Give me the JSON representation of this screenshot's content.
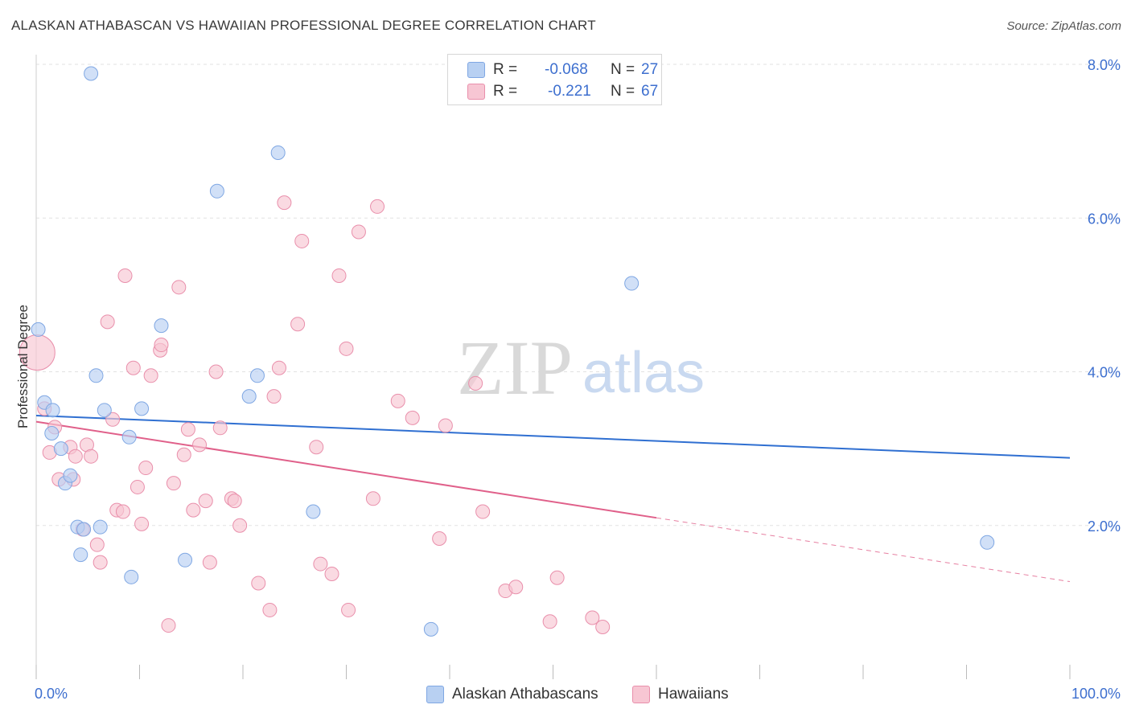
{
  "header": {
    "title": "ALASKAN ATHABASCAN VS HAWAIIAN PROFESSIONAL DEGREE CORRELATION CHART",
    "source": "Source: ZipAtlas.com"
  },
  "legend": {
    "rows": [
      {
        "r_label": "R =",
        "r_value": "-0.068",
        "n_label": "N =",
        "n_value": "27"
      },
      {
        "r_label": "R =",
        "r_value": "-0.221",
        "n_label": "N =",
        "n_value": "67"
      }
    ],
    "bottom": [
      "Alaskan Athabascans",
      "Hawaiians"
    ]
  },
  "watermark": {
    "zip": "ZIP",
    "atlas": "atlas"
  },
  "colors": {
    "blue_fill": "#b8d0f2",
    "blue_stroke": "#7fa7e3",
    "blue_line": "#2f6fd1",
    "pink_fill": "#f7c6d3",
    "pink_stroke": "#e98fab",
    "pink_line": "#e0608a",
    "axis_text": "#3d6fcf",
    "grid": "#e2e2e2"
  },
  "chart_data": {
    "type": "scatter",
    "title": "ALASKAN ATHABASCAN VS HAWAIIAN PROFESSIONAL DEGREE CORRELATION CHART",
    "xlabel": "",
    "ylabel": "Professional Degree",
    "xlim": [
      0,
      100
    ],
    "ylim": [
      0,
      8.3
    ],
    "x_tick_labels": [
      "0.0%",
      "100.0%"
    ],
    "y_ticks": [
      2,
      4,
      6,
      8
    ],
    "y_tick_labels": [
      "2.0%",
      "4.0%",
      "6.0%",
      "8.0%"
    ],
    "grid": true,
    "legend_position": "top-center",
    "series": [
      {
        "name": "Alaskan Athabascans",
        "color": "#b8d0f2",
        "points": [
          [
            0.2,
            4.55
          ],
          [
            0.8,
            3.6
          ],
          [
            1.6,
            3.5
          ],
          [
            1.5,
            3.2
          ],
          [
            2.4,
            3.0
          ],
          [
            2.8,
            2.55
          ],
          [
            3.3,
            2.65
          ],
          [
            4.0,
            1.98
          ],
          [
            4.3,
            1.62
          ],
          [
            4.6,
            1.95
          ],
          [
            5.3,
            7.88
          ],
          [
            5.8,
            3.95
          ],
          [
            6.2,
            1.98
          ],
          [
            6.6,
            3.5
          ],
          [
            9.0,
            3.15
          ],
          [
            9.2,
            1.33
          ],
          [
            10.2,
            3.52
          ],
          [
            12.1,
            4.6
          ],
          [
            14.4,
            1.55
          ],
          [
            17.5,
            6.35
          ],
          [
            20.6,
            3.68
          ],
          [
            21.4,
            3.95
          ],
          [
            23.4,
            6.85
          ],
          [
            26.8,
            2.18
          ],
          [
            38.2,
            0.65
          ],
          [
            57.6,
            5.15
          ],
          [
            92.0,
            1.78
          ]
        ],
        "trend": {
          "x": [
            0,
            100
          ],
          "y": [
            3.43,
            2.88
          ]
        }
      },
      {
        "name": "Hawaiians",
        "color": "#f7c6d3",
        "points": [
          [
            0.1,
            4.25
          ],
          [
            0.8,
            3.52
          ],
          [
            1.3,
            2.95
          ],
          [
            1.8,
            3.28
          ],
          [
            2.2,
            2.6
          ],
          [
            3.3,
            3.02
          ],
          [
            3.8,
            2.9
          ],
          [
            3.6,
            2.6
          ],
          [
            4.5,
            1.95
          ],
          [
            4.9,
            3.05
          ],
          [
            5.3,
            2.9
          ],
          [
            5.9,
            1.75
          ],
          [
            6.2,
            1.52
          ],
          [
            6.9,
            4.65
          ],
          [
            7.4,
            3.38
          ],
          [
            7.8,
            2.2
          ],
          [
            8.4,
            2.18
          ],
          [
            8.6,
            5.25
          ],
          [
            9.4,
            4.05
          ],
          [
            9.8,
            2.5
          ],
          [
            10.2,
            2.02
          ],
          [
            10.6,
            2.75
          ],
          [
            11.1,
            3.95
          ],
          [
            12.0,
            4.28
          ],
          [
            12.1,
            4.35
          ],
          [
            12.8,
            0.7
          ],
          [
            13.3,
            2.55
          ],
          [
            13.8,
            5.1
          ],
          [
            14.3,
            2.92
          ],
          [
            14.7,
            3.25
          ],
          [
            15.2,
            2.2
          ],
          [
            15.8,
            3.05
          ],
          [
            16.4,
            2.32
          ],
          [
            16.8,
            1.52
          ],
          [
            17.4,
            4.0
          ],
          [
            17.8,
            3.27
          ],
          [
            18.9,
            2.35
          ],
          [
            19.2,
            2.32
          ],
          [
            19.7,
            2.0
          ],
          [
            21.5,
            1.25
          ],
          [
            22.6,
            0.9
          ],
          [
            23.0,
            3.68
          ],
          [
            23.5,
            4.05
          ],
          [
            24.0,
            6.2
          ],
          [
            25.3,
            4.62
          ],
          [
            25.7,
            5.7
          ],
          [
            27.1,
            3.02
          ],
          [
            27.5,
            1.5
          ],
          [
            28.6,
            1.37
          ],
          [
            29.3,
            5.25
          ],
          [
            30.0,
            4.3
          ],
          [
            30.2,
            0.9
          ],
          [
            31.2,
            5.82
          ],
          [
            32.6,
            2.35
          ],
          [
            33.0,
            6.15
          ],
          [
            35.0,
            3.62
          ],
          [
            36.4,
            3.4
          ],
          [
            39.0,
            1.83
          ],
          [
            39.6,
            3.3
          ],
          [
            42.5,
            3.85
          ],
          [
            43.2,
            2.18
          ],
          [
            45.4,
            1.15
          ],
          [
            46.4,
            1.2
          ],
          [
            49.7,
            0.75
          ],
          [
            50.4,
            1.32
          ],
          [
            53.8,
            0.8
          ],
          [
            54.8,
            0.68
          ]
        ],
        "trend": {
          "x": [
            0,
            60
          ],
          "y": [
            3.35,
            2.1
          ]
        },
        "trend_dashed": {
          "x": [
            60,
            100
          ],
          "y": [
            2.1,
            1.27
          ]
        }
      }
    ]
  }
}
